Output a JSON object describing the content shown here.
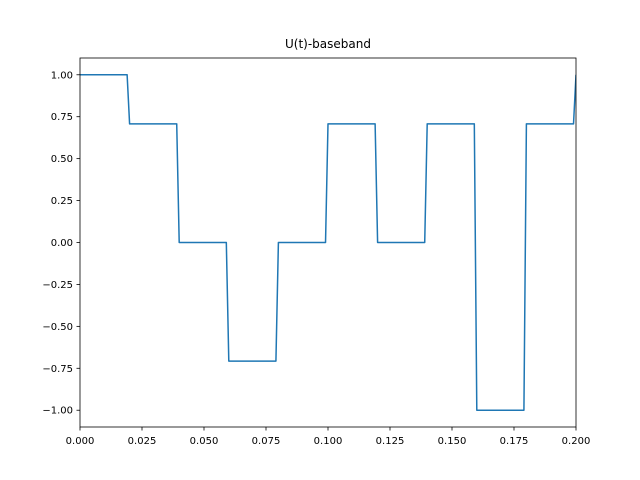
{
  "chart_data": {
    "type": "line",
    "title": "U(t)-baseband",
    "xlabel": "",
    "ylabel": "",
    "xlim": [
      0.0,
      0.2
    ],
    "ylim": [
      -1.1,
      1.1
    ],
    "grid": false,
    "x_ticks": [
      "0.000",
      "0.025",
      "0.050",
      "0.075",
      "0.100",
      "0.125",
      "0.150",
      "0.175",
      "0.200"
    ],
    "y_ticks": [
      "−1.00",
      "−0.75",
      "−0.50",
      "−0.25",
      "0.00",
      "0.25",
      "0.50",
      "0.75",
      "1.00"
    ],
    "line_color": "#1f77b4",
    "series": [
      {
        "x": [
          0.0,
          0.019,
          0.02,
          0.039,
          0.04,
          0.059,
          0.06,
          0.079,
          0.08,
          0.099,
          0.1,
          0.119,
          0.12,
          0.139,
          0.14,
          0.159,
          0.16,
          0.179,
          0.18,
          0.199,
          0.2
        ],
        "y": [
          1.0,
          1.0,
          0.7071,
          0.7071,
          0.0,
          0.0,
          -0.7071,
          -0.7071,
          0.0,
          0.0,
          0.7071,
          0.7071,
          0.0,
          0.0,
          0.7071,
          0.7071,
          -1.0,
          -1.0,
          0.7071,
          0.7071,
          1.0
        ]
      }
    ]
  }
}
